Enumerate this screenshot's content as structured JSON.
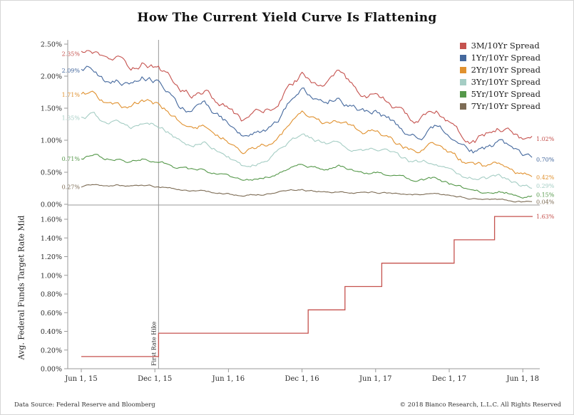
{
  "page": {
    "title": "How The Current Yield Curve Is Flattening",
    "footer_left": "Data Source: Federal Reserve and Bloomberg",
    "footer_right": "© 2018 Bianco Research, L.L.C. All Rights Reserved"
  },
  "colors": {
    "axis": "#9a9a9a",
    "tick_text": "#2b2b2b",
    "annotation_line": "#999999",
    "red": "#c5524e",
    "blue": "#44689d",
    "orange": "#e0912f",
    "teal": "#a5cdc4",
    "green": "#55984a",
    "brown": "#7d6c55"
  },
  "x_axis": {
    "tick_labels": [
      "Jun 1, 15",
      "Dec 1, 15",
      "Jun 1, 16",
      "Dec 1, 16",
      "Jun 1, 17",
      "Dec 1, 17",
      "Jun 1, 18"
    ],
    "tick_months": [
      0,
      6,
      12,
      18,
      24,
      30,
      36
    ]
  },
  "annotation": {
    "label": "First Rate Hike",
    "month": 6.3
  },
  "chart_data": [
    {
      "type": "line",
      "panel": "top",
      "x_unit": "months since Jun 1, 2015 (monthly anchor values, daily noise in render)",
      "ylim": [
        0,
        2.57
      ],
      "ytick_values": [
        0,
        0.5,
        1.0,
        1.5,
        2.0,
        2.5
      ],
      "ytick_labels": [
        "0.00%",
        "0.50%",
        "1.00%",
        "1.50%",
        "2.00%",
        "2.50%"
      ],
      "legend_position": "top-right",
      "grid": false,
      "series": [
        {
          "name": "3M/10Yr Spread",
          "color": "#c5524e",
          "start_label": "2.35%",
          "end_label": "1.02%",
          "noise": 0.08,
          "values": [
            2.35,
            2.38,
            2.18,
            2.24,
            2.1,
            2.22,
            2.18,
            2.02,
            1.8,
            1.72,
            1.78,
            1.62,
            1.5,
            1.28,
            1.34,
            1.42,
            1.58,
            1.85,
            2.02,
            1.92,
            1.88,
            2.02,
            1.82,
            1.72,
            1.72,
            1.58,
            1.44,
            1.3,
            1.34,
            1.46,
            1.34,
            1.12,
            1.02,
            1.1,
            1.24,
            1.18,
            1.02
          ]
        },
        {
          "name": "1Yr/10Yr Spread",
          "color": "#44689d",
          "start_label": "2.09%",
          "end_label": "0.70%",
          "noise": 0.075,
          "values": [
            2.09,
            2.12,
            1.92,
            1.98,
            1.86,
            1.96,
            1.92,
            1.78,
            1.56,
            1.48,
            1.54,
            1.38,
            1.26,
            1.04,
            1.1,
            1.18,
            1.34,
            1.6,
            1.76,
            1.66,
            1.62,
            1.74,
            1.56,
            1.46,
            1.46,
            1.34,
            1.2,
            1.06,
            1.1,
            1.2,
            1.06,
            0.9,
            0.82,
            0.88,
            0.96,
            0.86,
            0.7
          ]
        },
        {
          "name": "2Yr/10Yr Spread",
          "color": "#e0912f",
          "start_label": "1.71%",
          "end_label": "0.42%",
          "noise": 0.065,
          "values": [
            1.71,
            1.74,
            1.56,
            1.6,
            1.5,
            1.58,
            1.56,
            1.44,
            1.26,
            1.18,
            1.24,
            1.1,
            1.0,
            0.8,
            0.86,
            0.92,
            1.04,
            1.24,
            1.36,
            1.28,
            1.24,
            1.32,
            1.18,
            1.1,
            1.1,
            1.0,
            0.9,
            0.82,
            0.84,
            0.92,
            0.78,
            0.66,
            0.6,
            0.56,
            0.6,
            0.52,
            0.42
          ]
        },
        {
          "name": "3Yr/10Yr Spread",
          "color": "#a5cdc4",
          "start_label": "1.35%",
          "end_label": "0.29%",
          "noise": 0.05,
          "values": [
            1.35,
            1.4,
            1.24,
            1.28,
            1.2,
            1.26,
            1.24,
            1.14,
            1.0,
            0.92,
            0.98,
            0.86,
            0.78,
            0.6,
            0.66,
            0.72,
            0.82,
            0.96,
            1.06,
            1.0,
            0.96,
            1.02,
            0.9,
            0.84,
            0.84,
            0.78,
            0.7,
            0.62,
            0.64,
            0.68,
            0.56,
            0.46,
            0.42,
            0.38,
            0.4,
            0.34,
            0.29
          ]
        },
        {
          "name": "5Yr/10Yr Spread",
          "color": "#55984a",
          "start_label": "0.71%",
          "end_label": "0.15%",
          "noise": 0.035,
          "values": [
            0.71,
            0.78,
            0.7,
            0.72,
            0.66,
            0.7,
            0.66,
            0.62,
            0.56,
            0.52,
            0.56,
            0.48,
            0.44,
            0.36,
            0.4,
            0.44,
            0.48,
            0.56,
            0.62,
            0.58,
            0.54,
            0.58,
            0.52,
            0.48,
            0.5,
            0.46,
            0.42,
            0.36,
            0.38,
            0.4,
            0.32,
            0.26,
            0.23,
            0.19,
            0.21,
            0.18,
            0.15
          ]
        },
        {
          "name": "7Yr/10Yr Spread",
          "color": "#7d6c55",
          "start_label": "0.27%",
          "end_label": "0.04%",
          "noise": 0.02,
          "values": [
            0.27,
            0.31,
            0.28,
            0.3,
            0.27,
            0.3,
            0.28,
            0.26,
            0.22,
            0.2,
            0.22,
            0.18,
            0.17,
            0.13,
            0.15,
            0.16,
            0.18,
            0.2,
            0.22,
            0.2,
            0.19,
            0.2,
            0.18,
            0.17,
            0.18,
            0.17,
            0.16,
            0.14,
            0.15,
            0.16,
            0.13,
            0.11,
            0.09,
            0.07,
            0.08,
            0.06,
            0.04
          ]
        }
      ]
    },
    {
      "type": "step",
      "panel": "bottom",
      "ylabel": "Avg. Federal Funds Target Rate Mid",
      "ylim": [
        0,
        1.72
      ],
      "ytick_values": [
        0,
        0.2,
        0.4,
        0.6,
        0.8,
        1.0,
        1.2,
        1.4,
        1.6
      ],
      "ytick_labels": [
        "0.00%",
        "0.20%",
        "0.40%",
        "0.60%",
        "0.80%",
        "1.00%",
        "1.20%",
        "1.40%",
        "1.60%"
      ],
      "grid": false,
      "series": [
        {
          "name": "Avg. Federal Funds Target Rate Mid",
          "color": "#c5524e",
          "end_label": "1.63%",
          "steps": [
            [
              0,
              0.13
            ],
            [
              6.3,
              0.38
            ],
            [
              18.5,
              0.63
            ],
            [
              21.5,
              0.88
            ],
            [
              24.5,
              1.13
            ],
            [
              30.4,
              1.38
            ],
            [
              33.7,
              1.63
            ]
          ],
          "x_end": 36.8
        }
      ]
    }
  ]
}
